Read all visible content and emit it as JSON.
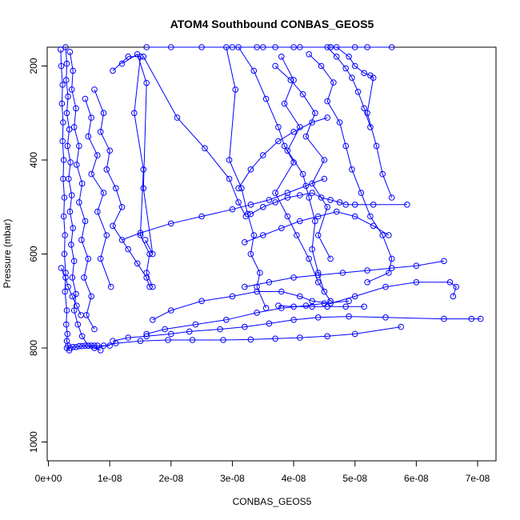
{
  "chart_data": {
    "type": "line",
    "title": "ATOM4 Southbound CONBAS_GEOS5",
    "xlabel": "CONBAS_GEOS5",
    "ylabel": "Pressure (mbar)",
    "xlim": [
      -2e-10,
      7.3e-08
    ],
    "ylim": [
      1040,
      160
    ],
    "y_reversed": true,
    "x_ticks": [
      0,
      1e-08,
      2e-08,
      3e-08,
      4e-08,
      5e-08,
      6e-08,
      7e-08
    ],
    "x_tick_labels": [
      "0e+00",
      "1e-08",
      "2e-08",
      "3e-08",
      "4e-08",
      "5e-08",
      "6e-08",
      "7e-08"
    ],
    "y_ticks": [
      200,
      400,
      600,
      800,
      1000
    ],
    "y_tick_labels": [
      "200",
      "400",
      "600",
      "800",
      "1000"
    ],
    "marker": "open-circle",
    "color": "#0000ff",
    "series": [
      {
        "x": [
          2e-09,
          2.1e-09,
          2.3e-09,
          2.2e-09,
          2.4e-09,
          2.3e-09,
          2.5e-09,
          2.4e-09,
          2.6e-09,
          2.5e-09,
          2.7e-09,
          2.6e-09,
          2.8e-09,
          2.7e-09,
          3e-09,
          2.9e-09,
          3.1e-09,
          3e-09,
          3.2e-09,
          3.4e-09
        ],
        "y": [
          165,
          200,
          240,
          280,
          320,
          360,
          400,
          440,
          480,
          520,
          560,
          600,
          640,
          680,
          720,
          750,
          770,
          785,
          795,
          805
        ]
      },
      {
        "x": [
          2.8e-09,
          3e-09,
          2.9e-09,
          3.2e-09,
          3e-09,
          3.4e-09,
          3.1e-09,
          3.6e-09,
          3.3e-09,
          3.8e-09,
          3.5e-09,
          4e-09,
          3.7e-09,
          4.2e-09,
          3.9e-09,
          4.5e-09,
          4.2e-09,
          4.8e-09,
          5.5e-09,
          6.5e-09,
          7.5e-09,
          8.5e-09
        ],
        "y": [
          160,
          195,
          230,
          265,
          300,
          335,
          370,
          405,
          440,
          475,
          510,
          545,
          580,
          615,
          650,
          685,
          720,
          750,
          775,
          795,
          800,
          805
        ]
      },
      {
        "x": [
          3.5e-09,
          4e-09,
          3.8e-09,
          4.5e-09,
          4.2e-09,
          5e-09,
          4.6e-09,
          5.5e-09,
          5e-09,
          6e-09,
          5.4e-09,
          6.5e-09,
          5.8e-09,
          7e-09,
          6.2e-09,
          7.5e-09
        ],
        "y": [
          170,
          210,
          250,
          290,
          330,
          370,
          410,
          450,
          490,
          530,
          570,
          610,
          650,
          690,
          730,
          760
        ]
      },
      {
        "x": [
          6e-09,
          7e-09,
          6.5e-09,
          8e-09,
          7e-09,
          9e-09,
          8e-09,
          9.5e-09,
          8.5e-09,
          1.02e-08
        ],
        "y": [
          270,
          310,
          350,
          390,
          430,
          470,
          510,
          560,
          610,
          670
        ]
      },
      {
        "x": [
          7.5e-09,
          9e-09,
          8.5e-09,
          1e-08,
          9.5e-09,
          1.1e-08,
          1.2e-08,
          1.05e-08,
          1.3e-08,
          1.45e-08,
          1.6e-08,
          1.65e-08
        ],
        "y": [
          250,
          300,
          340,
          380,
          420,
          460,
          500,
          540,
          590,
          620,
          650,
          670
        ]
      },
      {
        "x": [
          1.05e-08,
          1.3e-08,
          1.5e-08,
          1.4e-08,
          1.55e-08,
          1.5e-08,
          1.65e-08,
          1.6e-08,
          1.7e-08
        ],
        "y": [
          210,
          180,
          180,
          300,
          420,
          560,
          600,
          640,
          670
        ]
      },
      {
        "x": [
          1.2e-08,
          1.45e-08,
          1.6e-08,
          1.55e-08,
          1.7e-08,
          1.58e-08
        ],
        "y": [
          195,
          175,
          236,
          460,
          600,
          570
        ]
      },
      {
        "x": [
          1.55e-08,
          2.1e-08,
          2.55e-08,
          2.95e-08,
          3.1e-08,
          3.22e-08
        ],
        "y": [
          180,
          310,
          375,
          440,
          490,
          520
        ]
      },
      {
        "x": [
          1.6e-08,
          2e-08,
          2.5e-08,
          3e-08,
          3.5e-08,
          4e-08,
          4.6e-08,
          5.2e-08,
          5.6e-08,
          5e-08,
          4.6e-08,
          4.1e-08,
          3.7e-08,
          3.4e-08
        ],
        "y": [
          160,
          160,
          160,
          160,
          160,
          160,
          160,
          160,
          160,
          160,
          160,
          160,
          160,
          160
        ]
      },
      {
        "x": [
          2.9e-08,
          3.05e-08,
          2.95e-08,
          3.15e-08,
          3.25e-08,
          3.35e-08,
          3.3e-08,
          3.45e-08,
          3.4e-08,
          3.55e-08
        ],
        "y": [
          160,
          250,
          400,
          460,
          515,
          560,
          600,
          640,
          670,
          715
        ]
      },
      {
        "x": [
          3.1e-08,
          3.35e-08,
          3.55e-08,
          3.75e-08,
          3.85e-08,
          4e-08,
          3.7e-08,
          3.9e-08,
          4.05e-08,
          4.25e-08,
          4.4e-08,
          4.6e-08
        ],
        "y": [
          160,
          210,
          270,
          330,
          370,
          405,
          470,
          520,
          560,
          610,
          660,
          700
        ]
      },
      {
        "x": [
          3.7e-08,
          3.95e-08,
          4.15e-08,
          4.35e-08,
          4.2e-08,
          4.5e-08,
          4.3e-08,
          4.55e-08,
          4.4e-08,
          4.6e-08
        ],
        "y": [
          200,
          230,
          260,
          300,
          350,
          400,
          450,
          500,
          560,
          610
        ]
      },
      {
        "x": [
          3.8e-08,
          4e-08,
          3.85e-08,
          4.1e-08,
          3.9e-08,
          4.15e-08,
          4.25e-08,
          4.35e-08,
          4.3e-08,
          4.4e-08,
          4.5e-08
        ],
        "y": [
          180,
          230,
          280,
          330,
          380,
          430,
          480,
          530,
          590,
          640,
          680
        ]
      },
      {
        "x": [
          4.25e-08,
          4.45e-08,
          4.65e-08,
          4.55e-08,
          4.75e-08,
          4.85e-08,
          4.95e-08,
          5.1e-08,
          5.25e-08,
          5.45e-08,
          5.6e-08,
          5.55e-08,
          5.2e-08
        ],
        "y": [
          175,
          200,
          235,
          275,
          320,
          370,
          420,
          470,
          520,
          560,
          610,
          640,
          660
        ]
      },
      {
        "x": [
          4.7e-08,
          4.9e-08,
          5e-08,
          5.15e-08,
          5.25e-08,
          5.3e-08,
          5.2e-08,
          5.35e-08,
          5.45e-08,
          5.6e-08
        ],
        "y": [
          160,
          180,
          200,
          215,
          220,
          225,
          300,
          370,
          430,
          480
        ]
      },
      {
        "x": [
          4.55e-08,
          4.7e-08,
          4.85e-08,
          4.95e-08,
          5.05e-08,
          5.15e-08,
          5.25e-08
        ],
        "y": [
          160,
          180,
          205,
          225,
          255,
          290,
          330
        ]
      },
      {
        "x": [
          3.3e-08,
          3.5e-08,
          3.7e-08,
          3.9e-08,
          4.1e-08,
          4.3e-08,
          4.45e-08,
          4.6e-08,
          4.75e-08,
          4.85e-08,
          5e-08,
          5.3e-08,
          5.85e-08
        ],
        "y": [
          515,
          500,
          490,
          480,
          475,
          470,
          480,
          485,
          490,
          495,
          495,
          495,
          495
        ]
      },
      {
        "x": [
          3.2e-08,
          3.5e-08,
          3.8e-08,
          4.1e-08,
          4.4e-08,
          4.7e-08,
          5e-08,
          5.3e-08,
          5.55e-08
        ],
        "y": [
          575,
          560,
          545,
          530,
          520,
          510,
          520,
          540,
          560
        ]
      },
      {
        "x": [
          3.1e-08,
          3.3e-08,
          3.5e-08,
          3.75e-08,
          4e-08,
          4.3e-08,
          4.55e-08
        ],
        "y": [
          460,
          420,
          390,
          360,
          340,
          320,
          310
        ]
      },
      {
        "x": [
          1.2e-08,
          1.5e-08,
          2e-08,
          2.5e-08,
          3e-08,
          3.3e-08,
          3.6e-08,
          3.9e-08,
          4.2e-08,
          4.5e-08
        ],
        "y": [
          570,
          555,
          535,
          520,
          505,
          495,
          485,
          470,
          455,
          440
        ]
      },
      {
        "x": [
          2.1e-09,
          2.8e-09,
          3.2e-09,
          3.9e-09,
          4.6e-09,
          5.3e-09
        ],
        "y": [
          630,
          650,
          670,
          690,
          710,
          730
        ]
      },
      {
        "x": [
          3.2e-08,
          3.6e-08,
          4e-08,
          4.4e-08,
          4.8e-08,
          5.2e-08,
          5.6e-08,
          6e-08,
          6.45e-08
        ],
        "y": [
          670,
          660,
          650,
          645,
          640,
          635,
          630,
          625,
          615
        ]
      },
      {
        "x": [
          1.7e-08,
          2e-08,
          2.5e-08,
          3e-08,
          3.4e-08,
          3.8e-08,
          4.1e-08,
          4.3e-08,
          4.6e-08,
          5e-08,
          5.5e-08,
          6e-08,
          6.55e-08,
          6.65e-08,
          6.6e-08
        ],
        "y": [
          740,
          720,
          700,
          690,
          680,
          680,
          690,
          700,
          705,
          690,
          670,
          660,
          660,
          670,
          690
        ]
      },
      {
        "x": [
          1.6e-08,
          1.9e-08,
          2.4e-08,
          2.9e-08,
          3.4e-08,
          3.8e-08,
          4.2e-08,
          4.5e-08,
          4.9e-08
        ],
        "y": [
          770,
          760,
          750,
          740,
          725,
          715,
          710,
          705,
          700
        ]
      },
      {
        "x": [
          1.05e-08,
          1.3e-08,
          1.6e-08,
          2e-08,
          2.3e-08,
          2.8e-08,
          3.2e-08,
          3.6e-08,
          4e-08,
          4.4e-08,
          4.9e-08,
          5.5e-08,
          6.45e-08,
          6.9e-08,
          7.05e-08
        ],
        "y": [
          785,
          778,
          775,
          770,
          765,
          760,
          755,
          748,
          740,
          735,
          733,
          735,
          738,
          738,
          738
        ]
      },
      {
        "x": [
          7.5e-09,
          1.1e-08,
          1.5e-08,
          1.95e-08,
          2.35e-08,
          2.85e-08,
          3.3e-08,
          3.7e-08,
          4.1e-08,
          4.55e-08,
          5e-08,
          5.75e-08
        ],
        "y": [
          800,
          790,
          785,
          783,
          783,
          783,
          782,
          780,
          778,
          775,
          770,
          755
        ]
      },
      {
        "x": [
          3.75e-08,
          4e-08,
          4.3e-08,
          4.55e-08,
          4.85e-08,
          5.15e-08
        ],
        "y": [
          710,
          712,
          712,
          712,
          712,
          712
        ]
      },
      {
        "x": [
          3e-09,
          3.5e-09,
          4e-09,
          4.5e-09,
          5e-09,
          5.5e-09,
          6e-09,
          6.5e-09,
          7e-09,
          7.5e-09,
          8e-09,
          9e-09,
          1e-08
        ],
        "y": [
          800,
          800,
          798,
          798,
          796,
          796,
          795,
          795,
          795,
          795,
          795,
          795,
          795
        ]
      }
    ]
  }
}
